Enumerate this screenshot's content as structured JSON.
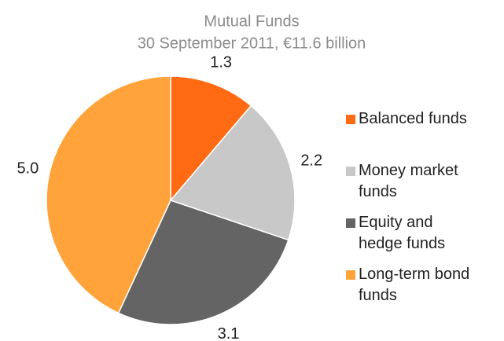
{
  "chart_data": {
    "type": "pie",
    "title": "Mutual Funds",
    "subtitle": "30 September 2011, €11.6 billion",
    "categories": [
      "Balanced funds",
      "Money market funds",
      "Equity and hedge funds",
      "Long-term bond funds"
    ],
    "values": [
      1.3,
      2.2,
      3.1,
      5.0
    ],
    "value_labels": [
      "1.3",
      "2.2",
      "3.1",
      "5.0"
    ],
    "colors": [
      "#ff6a13",
      "#c8c8c8",
      "#646464",
      "#ffa33a"
    ],
    "legend": "right"
  }
}
